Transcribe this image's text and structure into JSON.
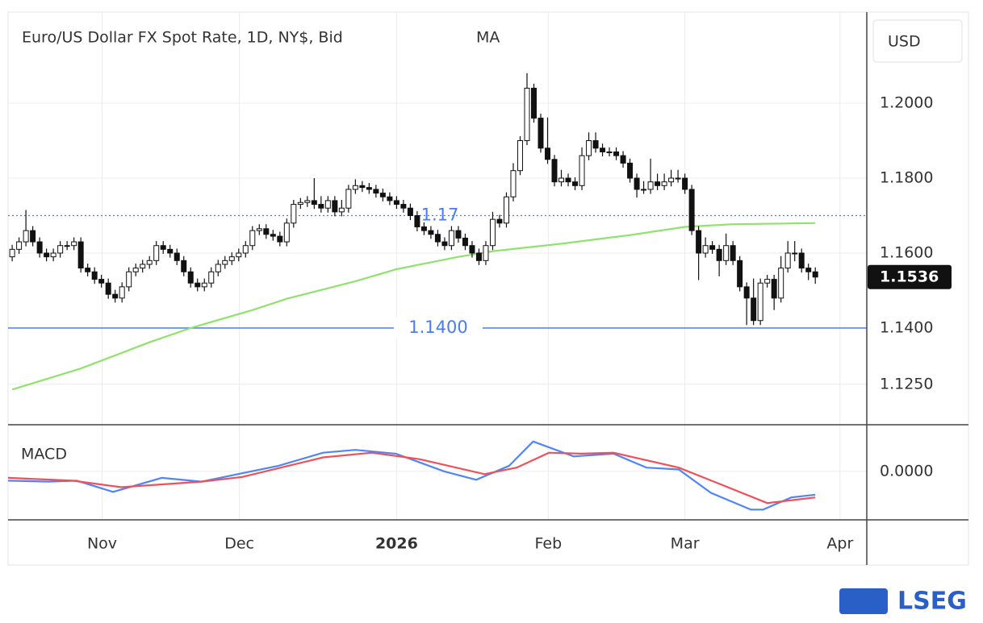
{
  "chart_data": [
    {
      "type": "candlestick",
      "title": "Euro/US Dollar FX Spot Rate, 1D, NY$, Bid",
      "indicator_label": "MA",
      "currency": "USD",
      "up_color": "#ffffff",
      "down_color": "#111111",
      "grid": true,
      "open": [
        1.159,
        1.161,
        1.163,
        1.166,
        1.163,
        1.16,
        1.159,
        1.16,
        1.162,
        1.162,
        1.163,
        1.156,
        1.155,
        1.153,
        1.152,
        1.149,
        1.148,
        1.151,
        1.155,
        1.156,
        1.157,
        1.158,
        1.162,
        1.161,
        1.16,
        1.158,
        1.155,
        1.152,
        1.151,
        1.152,
        1.155,
        1.157,
        1.158,
        1.159,
        1.16,
        1.162,
        1.166,
        1.1665,
        1.165,
        1.1645,
        1.163,
        1.168,
        1.173,
        1.1735,
        1.174,
        1.173,
        1.172,
        1.174,
        1.171,
        1.172,
        1.177,
        1.178,
        1.1775,
        1.177,
        1.176,
        1.175,
        1.174,
        1.173,
        1.172,
        1.17,
        1.167,
        1.166,
        1.165,
        1.163,
        1.162,
        1.166,
        1.164,
        1.162,
        1.16,
        1.158,
        1.162,
        1.169,
        1.168,
        1.175,
        1.182,
        1.19,
        1.204,
        1.196,
        1.188,
        1.185,
        1.179,
        1.18,
        1.179,
        1.178,
        1.186,
        1.19,
        1.188,
        1.187,
        1.187,
        1.186,
        1.184,
        1.18,
        1.177,
        1.177,
        1.179,
        1.178,
        1.179,
        1.18,
        1.18,
        1.177,
        1.166,
        1.16,
        1.162,
        1.161,
        1.158,
        1.162,
        1.158,
        1.151,
        1.148,
        1.142,
        1.152,
        1.153,
        1.148,
        1.156,
        1.16,
        1.16,
        1.156,
        1.155
      ],
      "high": [
        1.1622,
        1.1642,
        1.1715,
        1.1672,
        1.1642,
        1.1612,
        1.1612,
        1.1632,
        1.1632,
        1.1642,
        1.1642,
        1.1572,
        1.1562,
        1.1542,
        1.1532,
        1.1502,
        1.1522,
        1.1562,
        1.1572,
        1.1582,
        1.1592,
        1.1632,
        1.1632,
        1.1622,
        1.1612,
        1.1592,
        1.1562,
        1.1532,
        1.1532,
        1.1562,
        1.1582,
        1.1592,
        1.1602,
        1.1612,
        1.1632,
        1.1672,
        1.1677,
        1.1677,
        1.1662,
        1.1657,
        1.1692,
        1.1742,
        1.1747,
        1.1752,
        1.18,
        1.1752,
        1.1752,
        1.1752,
        1.1742,
        1.1782,
        1.1797,
        1.1792,
        1.1787,
        1.1782,
        1.1772,
        1.1762,
        1.1752,
        1.1742,
        1.1732,
        1.1712,
        1.1682,
        1.1672,
        1.1662,
        1.1642,
        1.1672,
        1.1672,
        1.1652,
        1.1632,
        1.1612,
        1.1632,
        1.171,
        1.1702,
        1.1762,
        1.184,
        1.1912,
        1.208,
        1.2052,
        1.1972,
        1.1962,
        1.1862,
        1.1822,
        1.1812,
        1.1802,
        1.1882,
        1.1922,
        1.1922,
        1.1892,
        1.1882,
        1.1882,
        1.1872,
        1.1852,
        1.1812,
        1.1792,
        1.1852,
        1.1812,
        1.1812,
        1.1822,
        1.1822,
        1.1812,
        1.1782,
        1.1672,
        1.1642,
        1.1632,
        1.1622,
        1.1652,
        1.1632,
        1.1592,
        1.1522,
        1.1532,
        1.1532,
        1.1542,
        1.1542,
        1.1592,
        1.1632,
        1.1632,
        1.1612,
        1.1572,
        1.1562
      ],
      "low": [
        1.1578,
        1.1598,
        1.1618,
        1.1618,
        1.1588,
        1.1578,
        1.1578,
        1.1588,
        1.1608,
        1.1608,
        1.1548,
        1.1538,
        1.1518,
        1.1508,
        1.1478,
        1.1468,
        1.1468,
        1.1498,
        1.1538,
        1.1548,
        1.1558,
        1.1568,
        1.1598,
        1.1588,
        1.1568,
        1.1538,
        1.1508,
        1.1498,
        1.1498,
        1.1508,
        1.1538,
        1.1558,
        1.1568,
        1.1578,
        1.1588,
        1.1608,
        1.1648,
        1.1638,
        1.1633,
        1.1618,
        1.1618,
        1.1668,
        1.1718,
        1.1723,
        1.1718,
        1.1708,
        1.1708,
        1.1698,
        1.1698,
        1.1708,
        1.1758,
        1.1763,
        1.1758,
        1.1748,
        1.1738,
        1.1728,
        1.1718,
        1.1708,
        1.1688,
        1.1658,
        1.1648,
        1.1638,
        1.1618,
        1.1608,
        1.1608,
        1.1628,
        1.1608,
        1.1588,
        1.1568,
        1.1568,
        1.1608,
        1.1668,
        1.1668,
        1.1738,
        1.1808,
        1.1888,
        1.1948,
        1.1868,
        1.1838,
        1.1778,
        1.1778,
        1.1778,
        1.1768,
        1.1768,
        1.1848,
        1.1868,
        1.1858,
        1.1858,
        1.1848,
        1.1828,
        1.1788,
        1.1748,
        1.1758,
        1.1758,
        1.1768,
        1.1768,
        1.1778,
        1.1788,
        1.1758,
        1.1648,
        1.1528,
        1.1588,
        1.1598,
        1.1538,
        1.1568,
        1.1568,
        1.1498,
        1.1408,
        1.1408,
        1.1408,
        1.1508,
        1.1448,
        1.1468,
        1.1548,
        1.1578,
        1.1548,
        1.1528,
        1.1518
      ],
      "close": [
        1.161,
        1.163,
        1.166,
        1.163,
        1.16,
        1.159,
        1.16,
        1.162,
        1.162,
        1.163,
        1.156,
        1.155,
        1.153,
        1.152,
        1.149,
        1.148,
        1.151,
        1.155,
        1.156,
        1.157,
        1.158,
        1.162,
        1.161,
        1.16,
        1.158,
        1.155,
        1.152,
        1.151,
        1.152,
        1.155,
        1.157,
        1.158,
        1.159,
        1.16,
        1.162,
        1.166,
        1.1665,
        1.165,
        1.1645,
        1.163,
        1.168,
        1.173,
        1.1735,
        1.174,
        1.173,
        1.172,
        1.174,
        1.171,
        1.172,
        1.177,
        1.178,
        1.1775,
        1.177,
        1.176,
        1.175,
        1.174,
        1.173,
        1.172,
        1.17,
        1.167,
        1.166,
        1.165,
        1.163,
        1.162,
        1.166,
        1.164,
        1.162,
        1.16,
        1.158,
        1.162,
        1.169,
        1.168,
        1.175,
        1.182,
        1.19,
        1.204,
        1.196,
        1.188,
        1.185,
        1.179,
        1.18,
        1.179,
        1.178,
        1.186,
        1.19,
        1.188,
        1.187,
        1.187,
        1.186,
        1.184,
        1.18,
        1.177,
        1.177,
        1.179,
        1.178,
        1.179,
        1.18,
        1.18,
        1.177,
        1.166,
        1.16,
        1.162,
        1.161,
        1.158,
        1.162,
        1.158,
        1.151,
        1.148,
        1.142,
        1.152,
        1.153,
        1.148,
        1.156,
        1.16,
        1.16,
        1.156,
        1.155,
        1.1536
      ],
      "series": [
        {
          "color": "#8fe36d",
          "x": [
            0,
            10,
            20,
            26,
            35,
            40,
            50,
            56,
            65,
            70,
            80,
            90,
            98,
            105,
            117
          ],
          "values": [
            1.1236,
            1.1292,
            1.1362,
            1.14,
            1.1448,
            1.1478,
            1.1525,
            1.1557,
            1.159,
            1.1605,
            1.1625,
            1.1648,
            1.167,
            1.1677,
            1.168
          ]
        }
      ],
      "reference_lines": [
        {
          "value": 1.17,
          "label": "1.17",
          "style": "dotted",
          "color": "#4a7cf0"
        },
        {
          "value": 1.14,
          "label": "1.1400",
          "style": "solid",
          "color": "#4a7cf0"
        }
      ],
      "xlim": [
        -0.6,
        124.5
      ],
      "xticks": [
        {
          "value": 13.1,
          "label": "Nov"
        },
        {
          "value": 33.1,
          "label": "Dec"
        },
        {
          "value": 56,
          "label": "2026"
        },
        {
          "value": 78.1,
          "label": "Feb"
        },
        {
          "value": 98,
          "label": "Mar"
        },
        {
          "value": 120.6,
          "label": "Apr"
        }
      ],
      "ylim": [
        1.1142,
        1.2243
      ],
      "yticks": [
        {
          "value": 1.2,
          "label": "1.2000"
        },
        {
          "value": 1.18,
          "label": "1.1800"
        },
        {
          "value": 1.16,
          "label": "1.1600"
        },
        {
          "value": 1.14,
          "label": "1.1400"
        },
        {
          "value": 1.125,
          "label": "1.1250"
        }
      ]
    },
    {
      "type": "line",
      "title": "MACD",
      "grid": true,
      "xlim": [
        -0.6,
        124.5
      ],
      "ylim": [
        -0.0052,
        0.005
      ],
      "yticks": [
        {
          "value": 0,
          "label": "0.0000"
        }
      ],
      "series": [
        {
          "color": "#4f86f7",
          "x": [
            -0.6,
            5.3,
            9.4,
            14.7,
            21.8,
            27.6,
            33.5,
            38.8,
            45.3,
            50,
            55.9,
            62.9,
            67.6,
            72.4,
            75.9,
            81.8,
            87.6,
            92.4,
            97.1,
            101.8,
            107.6,
            109.4,
            113.5,
            117
          ],
          "values": [
            -0.001,
            -0.0011,
            -0.001,
            -0.0022,
            -0.0007,
            -0.0011,
            -0.0002,
            0.0006,
            0.002,
            0.0023,
            0.0019,
            0,
            -0.0009,
            0.0006,
            0.0032,
            0.0016,
            0.0019,
            0.0004,
            0.0002,
            -0.0023,
            -0.0041,
            -0.0041,
            -0.0028,
            -0.0025
          ]
        },
        {
          "color": "#f0505a",
          "x": [
            -0.6,
            8.8,
            15.9,
            27.6,
            33.5,
            45.3,
            52.4,
            59.4,
            68.8,
            73.5,
            78.2,
            82.9,
            87.6,
            97.1,
            102.9,
            110,
            117
          ],
          "values": [
            -0.0007,
            -0.001,
            -0.0017,
            -0.0011,
            -0.0006,
            0.0015,
            0.002,
            0.0013,
            -0.0003,
            0.0004,
            0.002,
            0.0019,
            0.002,
            0.0004,
            -0.0013,
            -0.0034,
            -0.0028
          ]
        }
      ]
    }
  ],
  "logo": "LSEG"
}
